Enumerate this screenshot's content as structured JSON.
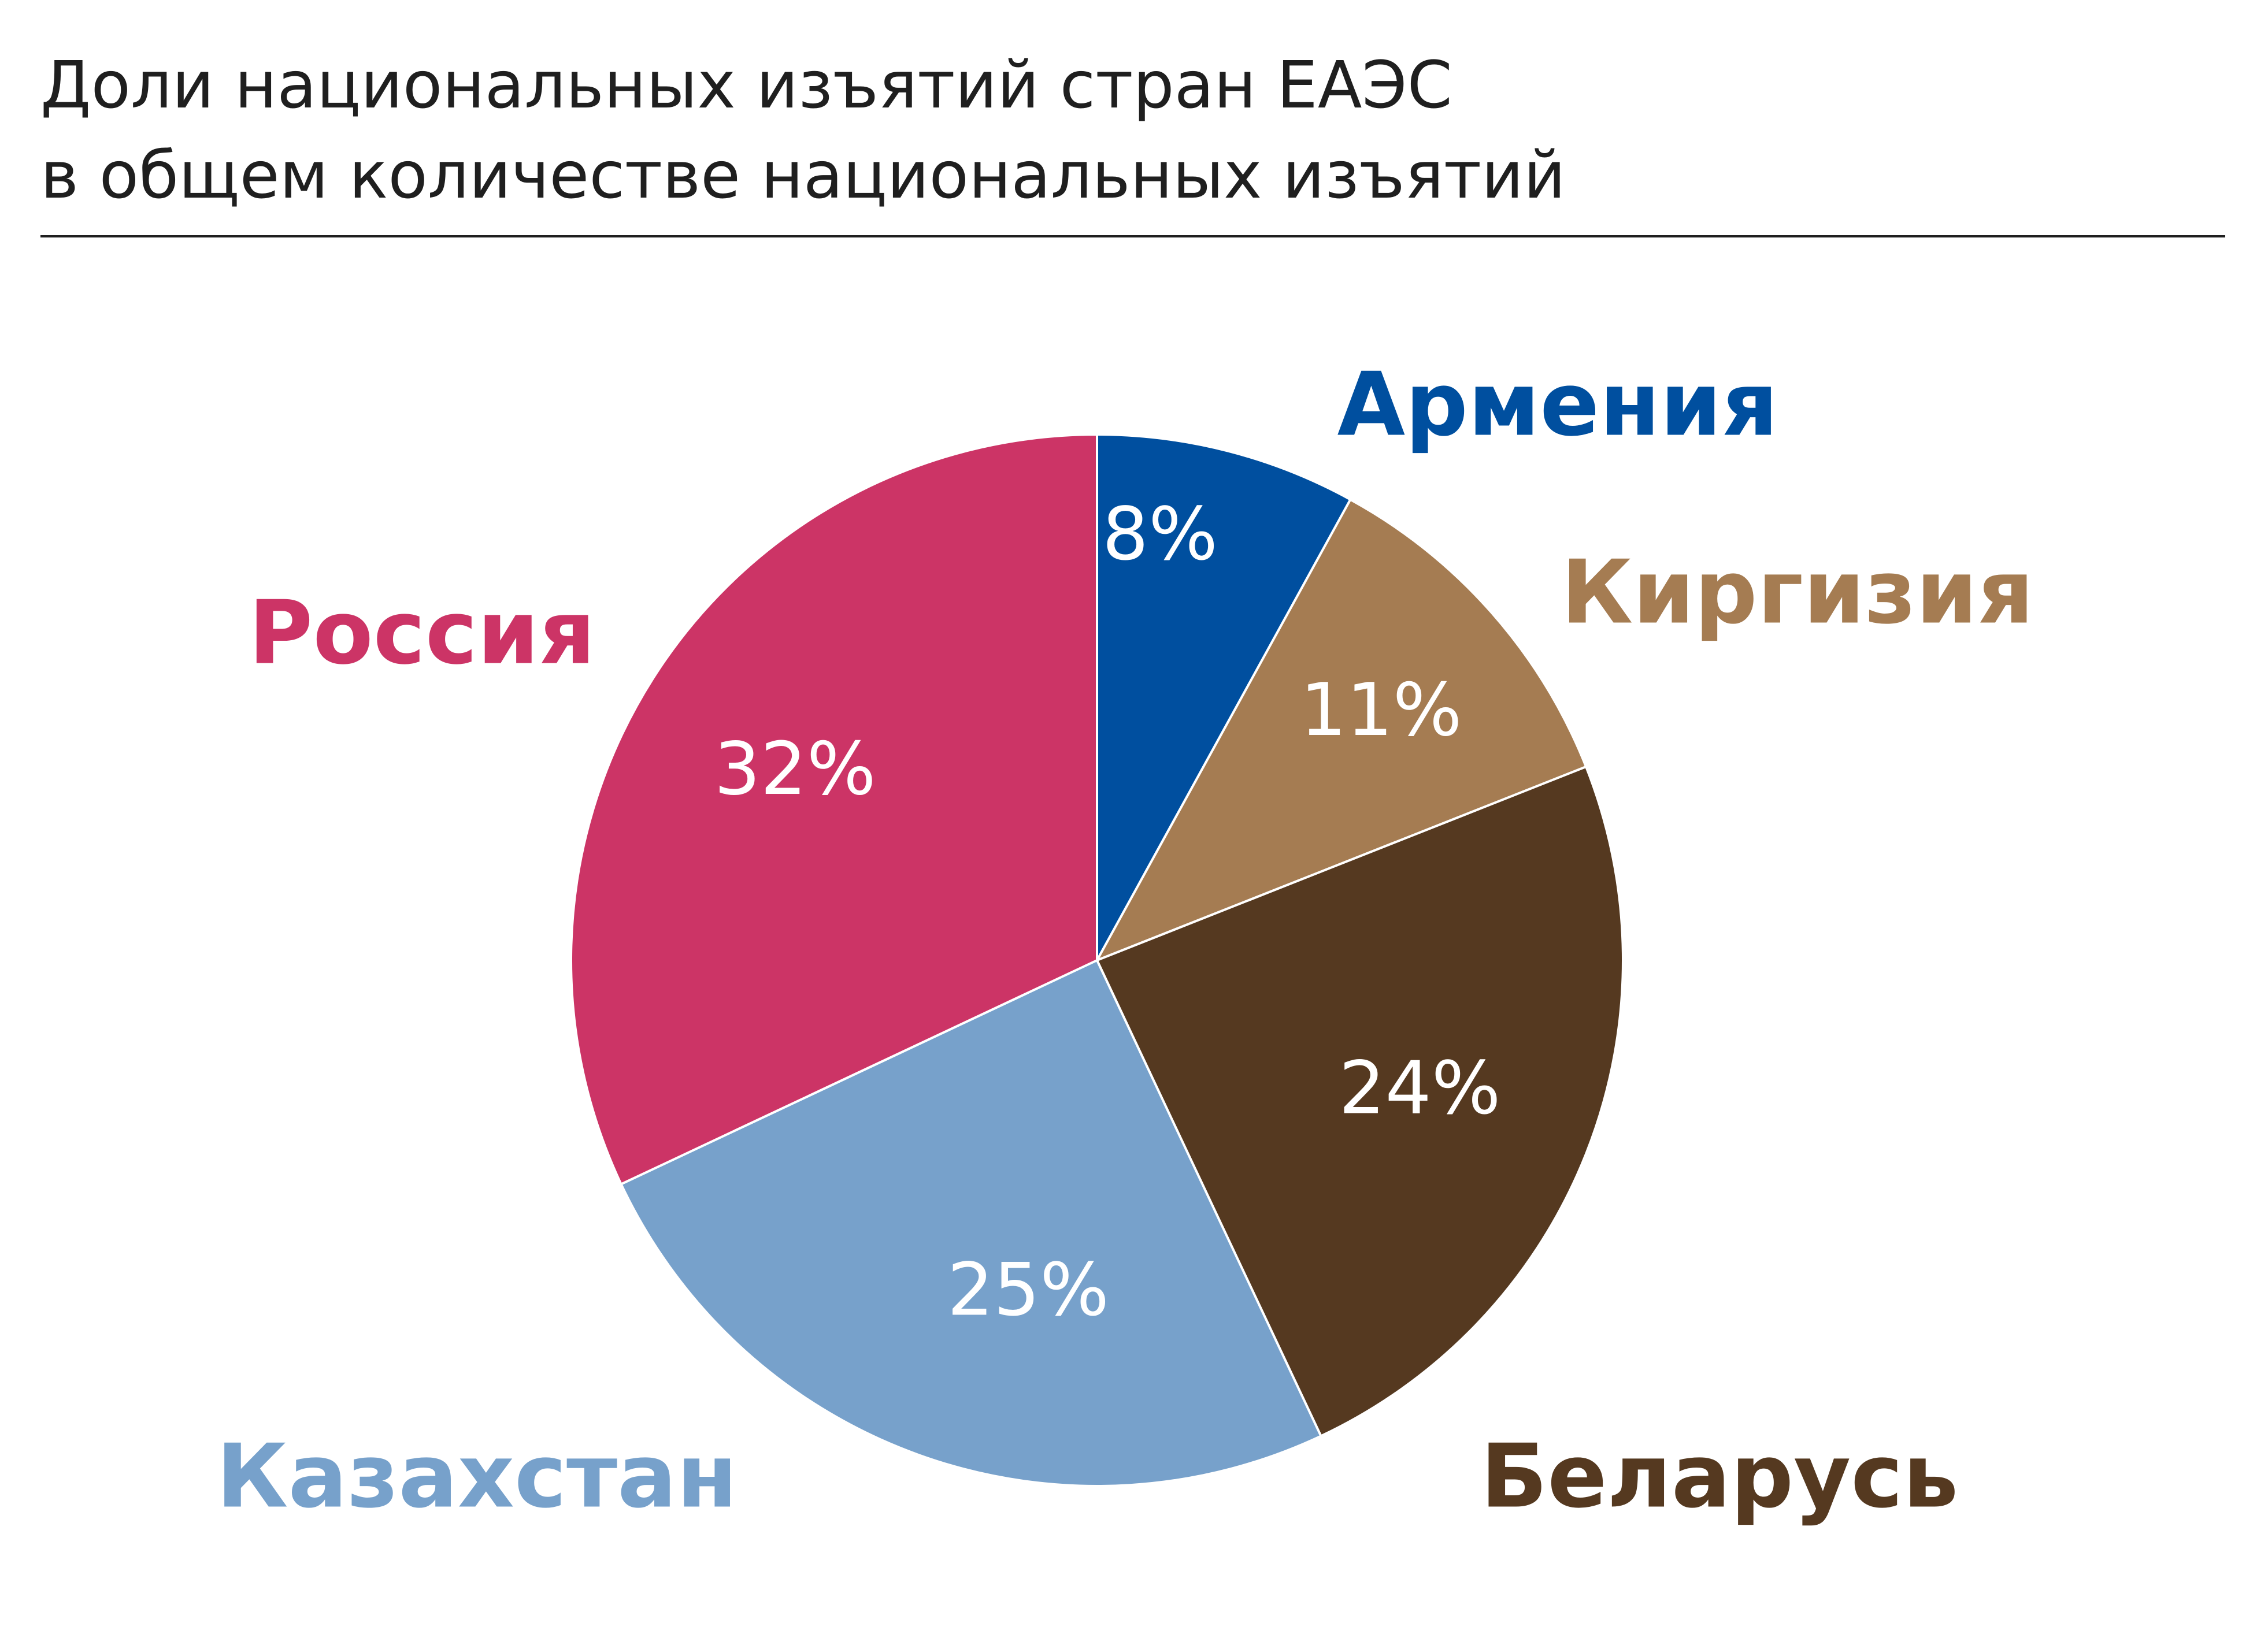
{
  "title": {
    "line1": "Доли национальных изъятий стран ЕАЭС",
    "line2": "в общем количестве национальных изъятий"
  },
  "chart_data": {
    "type": "pie",
    "title": "Доли национальных изъятий стран ЕАЭС в общем количестве национальных изъятий",
    "unit": "%",
    "start_angle_deg": 0,
    "direction": "clockwise",
    "slices": [
      {
        "label": "Армения",
        "value": 8,
        "value_label": "8%",
        "color": "#004f9f"
      },
      {
        "label": "Киргизия",
        "value": 11,
        "value_label": "11%",
        "color": "#a57c52"
      },
      {
        "label": "Беларусь",
        "value": 24,
        "value_label": "24%",
        "color": "#553920"
      },
      {
        "label": "Казахстан",
        "value": 25,
        "value_label": "25%",
        "color": "#77a1cb"
      },
      {
        "label": "Россия",
        "value": 32,
        "value_label": "32%",
        "color": "#cc3466"
      }
    ]
  }
}
